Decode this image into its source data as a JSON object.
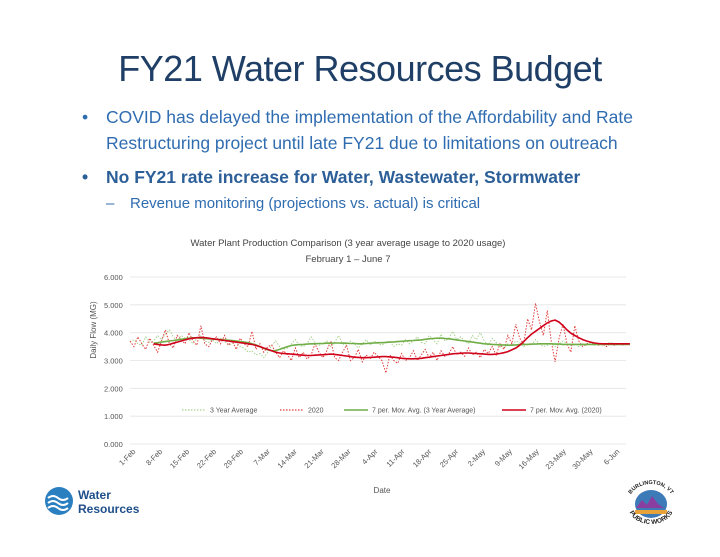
{
  "slide": {
    "title": "FY21 Water Resources Budget",
    "bullets": [
      {
        "text": "COVID has delayed the implementation of the Affordability and Rate Restructuring project until late FY21 due to limitations on outreach"
      },
      {
        "text": "No FY21 rate increase for Water, Wastewater, Stormwater"
      }
    ],
    "sub_bullet": "Revenue monitoring (projections vs. actual) is critical"
  },
  "logos": {
    "left_line1": "Water",
    "left_line2": "Resources",
    "right_top": "BURLINGTON, VT",
    "right_bottom": "PUBLIC WORKS"
  },
  "chart_data": {
    "type": "line",
    "title": "Water Plant Production Comparison (3 year average usage to 2020 usage)",
    "subtitle": "February 1 – June 7",
    "xlabel": "Date",
    "ylabel": "Daily Flow (MG)",
    "ylim": [
      0,
      6
    ],
    "y_ticks": [
      "0.000",
      "1.000",
      "2.000",
      "3.000",
      "4.000",
      "5.000",
      "6.000"
    ],
    "x_ticks": [
      "1-Feb",
      "8-Feb",
      "15-Feb",
      "22-Feb",
      "29-Feb",
      "7-Mar",
      "14-Mar",
      "21-Mar",
      "28-Mar",
      "4-Apr",
      "11-Apr",
      "18-Apr",
      "25-Apr",
      "2-May",
      "9-May",
      "16-May",
      "23-May",
      "30-May",
      "6-Jun"
    ],
    "grid": true,
    "legend_position": "inside-lower",
    "series": [
      {
        "name": "3 Year Average",
        "color": "#a9d18e",
        "style": "dotted",
        "values": [
          3.65,
          3.75,
          3.6,
          3.55,
          3.85,
          3.65,
          3.7,
          3.9,
          3.75,
          3.95,
          4.1,
          3.85,
          3.7,
          3.9,
          3.8,
          3.75,
          3.6,
          3.8,
          3.9,
          3.7,
          3.65,
          3.75,
          3.6,
          3.8,
          3.7,
          3.55,
          3.6,
          3.65,
          3.5,
          3.45,
          3.3,
          3.35,
          3.2,
          3.25,
          3.1,
          3.3,
          3.55,
          3.7,
          3.5,
          3.4,
          3.45,
          3.6,
          3.75,
          3.55,
          3.5,
          3.6,
          3.85,
          3.65,
          3.55,
          3.6,
          3.7,
          3.5,
          3.65,
          3.9,
          3.6,
          3.55,
          3.7,
          3.6,
          3.45,
          3.6,
          3.75,
          3.55,
          3.7,
          3.6,
          3.55,
          3.65,
          3.7,
          3.5,
          3.6,
          3.55,
          3.75,
          3.6,
          3.7,
          3.85,
          3.65,
          3.6,
          3.9,
          3.75,
          3.6,
          3.95,
          3.7,
          3.8,
          4.05,
          3.75,
          3.85,
          3.7,
          3.6,
          3.9,
          3.75,
          4.0,
          3.7,
          3.55,
          3.8,
          3.65,
          3.5,
          3.45,
          3.6,
          3.55,
          3.7,
          3.65,
          3.5,
          3.6,
          3.55,
          3.75,
          3.6,
          3.5,
          3.55,
          3.6,
          3.5,
          3.6,
          3.7,
          3.6,
          3.55,
          3.6,
          3.5,
          3.6,
          3.55,
          3.6,
          3.55,
          3.6,
          3.55,
          3.6,
          3.65,
          3.6,
          3.55,
          3.6,
          3.6,
          3.6
        ]
      },
      {
        "name": "2020",
        "color": "#e03c3c",
        "style": "dotted",
        "values": [
          3.7,
          3.5,
          3.85,
          3.6,
          3.4,
          3.8,
          3.55,
          3.3,
          3.7,
          4.1,
          3.6,
          3.45,
          3.9,
          3.75,
          3.6,
          4.0,
          3.7,
          3.55,
          4.25,
          3.6,
          3.5,
          3.75,
          3.85,
          3.6,
          3.9,
          3.55,
          3.7,
          3.4,
          3.8,
          3.6,
          3.5,
          4.05,
          3.4,
          3.6,
          3.3,
          3.5,
          3.55,
          3.3,
          3.1,
          3.35,
          3.2,
          3.0,
          3.45,
          3.1,
          3.3,
          3.05,
          3.2,
          3.6,
          3.3,
          3.1,
          3.35,
          3.7,
          3.1,
          3.0,
          3.3,
          3.55,
          3.0,
          3.1,
          3.4,
          2.95,
          3.2,
          3.05,
          3.3,
          3.15,
          3.0,
          2.55,
          3.2,
          3.0,
          2.9,
          3.25,
          3.0,
          3.1,
          3.35,
          3.0,
          3.2,
          3.4,
          3.1,
          3.3,
          3.0,
          3.35,
          3.15,
          3.25,
          3.5,
          3.2,
          3.3,
          3.15,
          3.45,
          3.2,
          3.3,
          3.1,
          3.4,
          3.25,
          3.5,
          3.2,
          3.6,
          3.4,
          3.9,
          3.6,
          4.3,
          3.8,
          3.6,
          4.5,
          4.1,
          5.05,
          4.4,
          3.9,
          4.8,
          3.7,
          2.95,
          3.8,
          4.3,
          3.6,
          3.3,
          4.25,
          3.7,
          3.5,
          3.6,
          3.65,
          3.6,
          3.55,
          3.6,
          3.5,
          3.6,
          3.55,
          3.6,
          3.55,
          3.6,
          3.6
        ]
      },
      {
        "name": "7 per. Mov. Avg. (3 Year Average)",
        "color": "#70ad47",
        "style": "solid",
        "start_index": 6,
        "values": [
          3.62,
          3.64,
          3.66,
          3.68,
          3.7,
          3.72,
          3.74,
          3.76,
          3.78,
          3.8,
          3.82,
          3.81,
          3.8,
          3.79,
          3.78,
          3.77,
          3.76,
          3.75,
          3.74,
          3.73,
          3.72,
          3.7,
          3.68,
          3.66,
          3.64,
          3.6,
          3.56,
          3.5,
          3.44,
          3.38,
          3.35,
          3.36,
          3.4,
          3.45,
          3.5,
          3.54,
          3.56,
          3.57,
          3.58,
          3.59,
          3.6,
          3.6,
          3.61,
          3.61,
          3.62,
          3.62,
          3.63,
          3.63,
          3.62,
          3.62,
          3.61,
          3.61,
          3.6,
          3.6,
          3.61,
          3.62,
          3.63,
          3.64,
          3.64,
          3.65,
          3.66,
          3.67,
          3.68,
          3.69,
          3.7,
          3.71,
          3.72,
          3.73,
          3.74,
          3.76,
          3.78,
          3.79,
          3.8,
          3.8,
          3.79,
          3.78,
          3.76,
          3.74,
          3.72,
          3.7,
          3.68,
          3.66,
          3.64,
          3.62,
          3.6,
          3.59,
          3.58,
          3.57,
          3.56,
          3.56,
          3.55,
          3.55,
          3.56,
          3.57,
          3.58,
          3.58,
          3.59,
          3.59,
          3.6,
          3.6,
          3.6,
          3.6,
          3.59,
          3.59,
          3.58,
          3.58,
          3.58,
          3.58,
          3.58,
          3.58,
          3.58,
          3.58,
          3.58,
          3.58,
          3.58,
          3.58,
          3.58,
          3.58,
          3.58,
          3.58,
          3.58,
          3.58
        ]
      },
      {
        "name": "7 per. Mov. Avg. (2020)",
        "color": "#d0021b",
        "style": "solid",
        "start_index": 6,
        "values": [
          3.6,
          3.58,
          3.56,
          3.55,
          3.58,
          3.62,
          3.66,
          3.7,
          3.74,
          3.78,
          3.8,
          3.82,
          3.83,
          3.82,
          3.8,
          3.78,
          3.76,
          3.74,
          3.72,
          3.7,
          3.68,
          3.66,
          3.64,
          3.62,
          3.6,
          3.58,
          3.54,
          3.5,
          3.45,
          3.4,
          3.35,
          3.3,
          3.27,
          3.25,
          3.24,
          3.23,
          3.22,
          3.2,
          3.19,
          3.18,
          3.18,
          3.19,
          3.2,
          3.21,
          3.22,
          3.23,
          3.22,
          3.2,
          3.18,
          3.16,
          3.14,
          3.12,
          3.11,
          3.1,
          3.1,
          3.11,
          3.12,
          3.13,
          3.14,
          3.14,
          3.13,
          3.12,
          3.1,
          3.08,
          3.07,
          3.06,
          3.06,
          3.07,
          3.08,
          3.1,
          3.12,
          3.14,
          3.16,
          3.18,
          3.2,
          3.22,
          3.24,
          3.25,
          3.26,
          3.27,
          3.27,
          3.26,
          3.25,
          3.24,
          3.23,
          3.22,
          3.22,
          3.23,
          3.25,
          3.28,
          3.32,
          3.38,
          3.45,
          3.55,
          3.68,
          3.82,
          3.95,
          4.05,
          4.15,
          4.25,
          4.35,
          4.42,
          4.45,
          4.38,
          4.25,
          4.1,
          3.98,
          3.9,
          3.82,
          3.75,
          3.7,
          3.66,
          3.63,
          3.61,
          3.6,
          3.6,
          3.6,
          3.6,
          3.6,
          3.6,
          3.6,
          3.6
        ]
      }
    ]
  }
}
